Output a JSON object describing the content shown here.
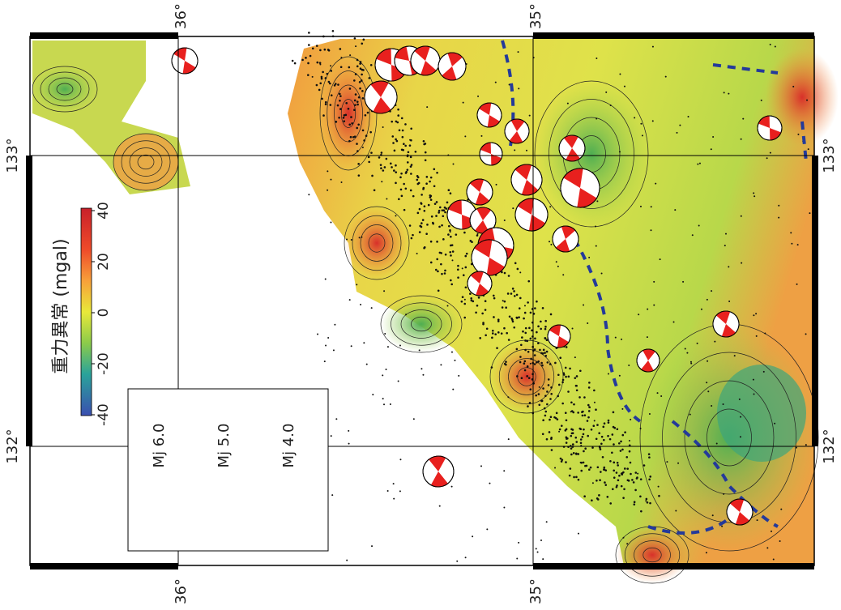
{
  "map": {
    "colorbar": {
      "title": "重力異常 (mgal)",
      "lim": [
        -40,
        40
      ],
      "ticks": [
        40,
        20,
        0,
        -20,
        -40
      ]
    },
    "latitude_labels": {
      "top": [
        "36°",
        "35°"
      ],
      "bottom": [
        "36°",
        "35°"
      ]
    },
    "longitude_labels": {
      "left": [
        "133°",
        "132°"
      ],
      "right": [
        "133°",
        "132°"
      ]
    },
    "legend": [
      "Mj 6.0",
      "Mj 5.0",
      "Mj 4.0"
    ]
  }
}
